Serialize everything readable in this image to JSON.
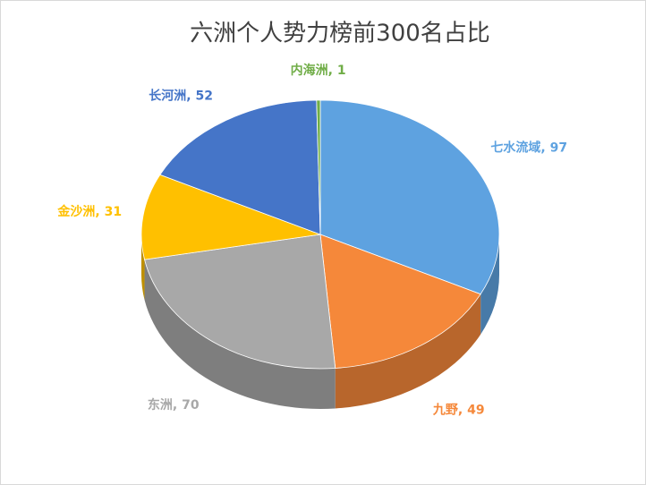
{
  "chart_data": {
    "type": "pie3d",
    "title": "六洲个人势力榜前300名占比",
    "categories": [
      "七水流域",
      "九野",
      "东洲",
      "金沙洲",
      "长河洲",
      "内海洲"
    ],
    "values": [
      97,
      49,
      70,
      31,
      52,
      1
    ],
    "colors": [
      "#5ea2e0",
      "#f5883a",
      "#a8a8a8",
      "#ffc000",
      "#4575c8",
      "#70ad47"
    ]
  }
}
